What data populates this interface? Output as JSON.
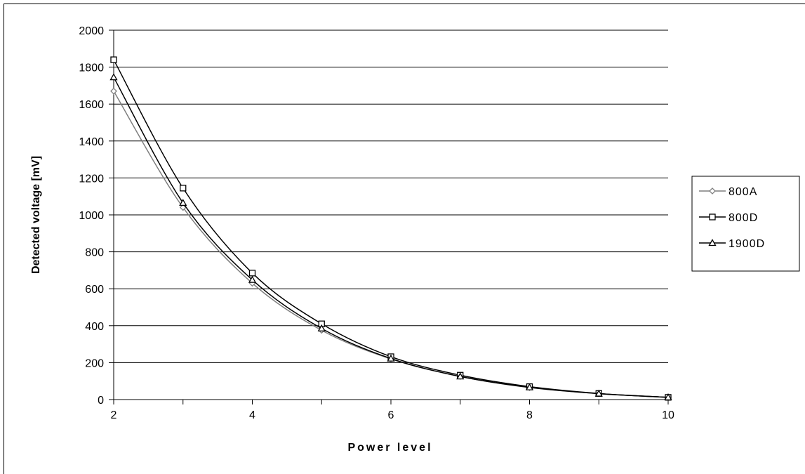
{
  "chart_data": {
    "type": "line",
    "xlabel": "Power level",
    "ylabel": "Detected voltage [mV]",
    "x": [
      2,
      3,
      4,
      5,
      6,
      7,
      8,
      9,
      10
    ],
    "xlim": [
      2,
      10
    ],
    "ylim": [
      0,
      2000
    ],
    "x_ticks": [
      2,
      4,
      6,
      8,
      10
    ],
    "y_ticks": [
      0,
      200,
      400,
      600,
      800,
      1000,
      1200,
      1400,
      1600,
      1800,
      2000
    ],
    "grid": "horizontal",
    "legend_position": "right",
    "series": [
      {
        "name": "800A",
        "marker": "diamond",
        "color": "#7f7f7f",
        "values": [
          1670,
          1040,
          630,
          375,
          220,
          125,
          65,
          32,
          12
        ]
      },
      {
        "name": "800D",
        "marker": "square",
        "color": "#000000",
        "values": [
          1840,
          1145,
          685,
          410,
          232,
          132,
          70,
          33,
          12
        ]
      },
      {
        "name": "1900D",
        "marker": "triangle",
        "color": "#000000",
        "values": [
          1745,
          1065,
          648,
          385,
          222,
          125,
          66,
          32,
          12
        ]
      }
    ]
  }
}
